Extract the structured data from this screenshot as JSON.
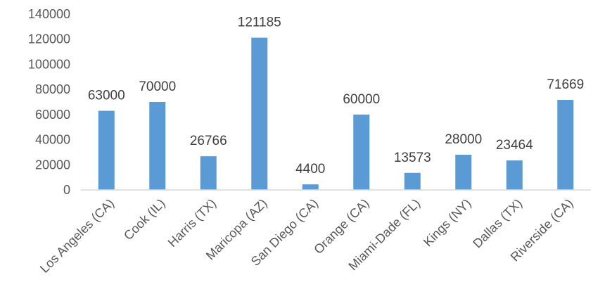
{
  "chart_data": {
    "type": "bar",
    "title": "",
    "xlabel": "",
    "ylabel": "",
    "categories": [
      "Los Angeles (CA)",
      "Cook (IL)",
      "Harris (TX)",
      "Maricopa (AZ)",
      "San Diego (CA)",
      "Orange (CA)",
      "Miami-Dade (FL)",
      "Kings (NY)",
      "Dallas (TX)",
      "Riverside (CA)"
    ],
    "values": [
      63000,
      70000,
      26766,
      121185,
      4400,
      60000,
      13573,
      28000,
      23464,
      71669
    ],
    "ylim": [
      0,
      140000
    ],
    "yticks": [
      0,
      20000,
      40000,
      60000,
      80000,
      100000,
      120000,
      140000
    ],
    "data_labels": [
      "63000",
      "70000",
      "26766",
      "121185",
      "4400",
      "60000",
      "13573",
      "28000",
      "23464",
      "71669"
    ],
    "grid": false,
    "legend": "none",
    "bar_color": "#5b9bd5"
  }
}
